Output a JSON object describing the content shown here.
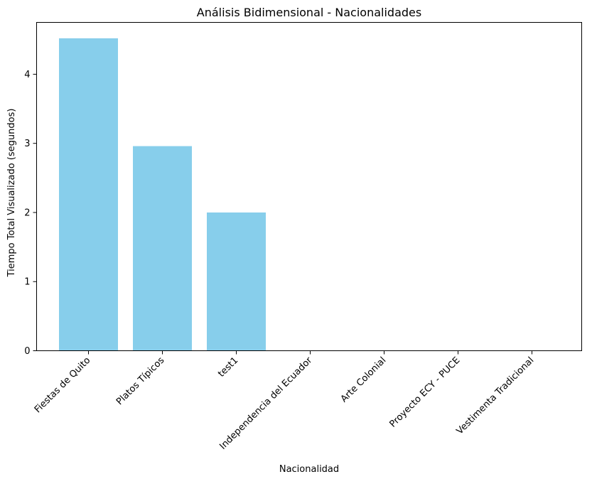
{
  "chart_data": {
    "type": "bar",
    "title": "Análisis Bidimensional - Nacionalidades",
    "xlabel": "Nacionalidad",
    "ylabel": "Tiempo Total Visualizado (segundos)",
    "categories": [
      "Fiestas de Quito",
      "Platos Típicos",
      "test1",
      "Independencia del Ecuador",
      "Arte Colonial",
      "Proyecto ECY - PUCE",
      "Vestimenta Tradicional"
    ],
    "values": [
      4.52,
      2.96,
      2.0,
      0,
      0,
      0,
      0
    ],
    "ylim": [
      0,
      4.75
    ],
    "yticks": [
      0,
      1,
      2,
      3,
      4
    ],
    "grid": false,
    "bar_color": "#87ceeb"
  }
}
